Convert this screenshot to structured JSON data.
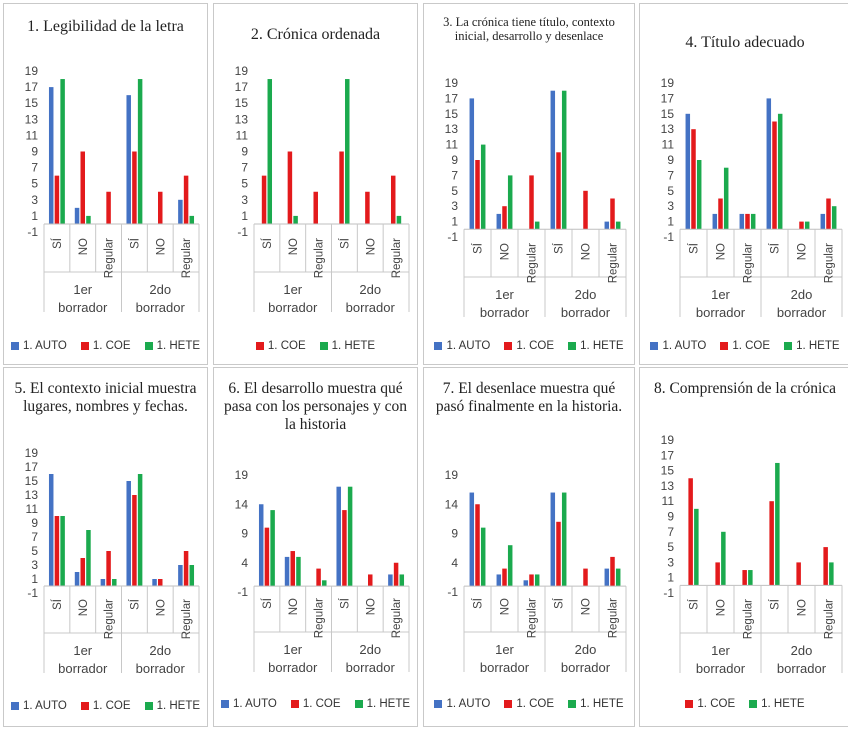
{
  "colors": {
    "1. AUTO": "#4472C4",
    "1. COE": "#E31A1C",
    "1. HETE": "#1BAA4E"
  },
  "groups": [
    "1er borrador",
    "2do borrador"
  ],
  "chart_data": [
    {
      "type": "bar",
      "title": "1. Legibilidad de la letra",
      "categories": [
        "SÍ",
        "NO",
        "Regular",
        "SÍ",
        "NO",
        "Regular"
      ],
      "groups": [
        "1er borrador",
        "2do borrador"
      ],
      "yticks": [
        -1,
        1,
        3,
        5,
        7,
        9,
        11,
        13,
        15,
        17,
        19
      ],
      "ylim": [
        -1,
        19
      ],
      "series": [
        {
          "name": "1. AUTO",
          "values": [
            17,
            2,
            0,
            16,
            0,
            3
          ]
        },
        {
          "name": "1. COE",
          "values": [
            6,
            9,
            4,
            9,
            4,
            6
          ]
        },
        {
          "name": "1. HETE",
          "values": [
            18,
            1,
            0,
            18,
            0,
            1
          ]
        }
      ]
    },
    {
      "type": "bar",
      "title": "2. Crónica ordenada",
      "categories": [
        "SÍ",
        "NO",
        "Regular",
        "SÍ",
        "NO",
        "Regular"
      ],
      "groups": [
        "1er borrador",
        "2do borrador"
      ],
      "yticks": [
        -1,
        1,
        3,
        5,
        7,
        9,
        11,
        13,
        15,
        17,
        19
      ],
      "ylim": [
        -1,
        19
      ],
      "series": [
        {
          "name": "1. COE",
          "values": [
            6,
            9,
            4,
            9,
            4,
            6
          ]
        },
        {
          "name": "1. HETE",
          "values": [
            18,
            1,
            0,
            18,
            0,
            1
          ]
        }
      ]
    },
    {
      "type": "bar",
      "title": "3. La crónica tiene título, contexto inicial, desarrollo y desenlace",
      "categories": [
        "SÍ",
        "NO",
        "Regular",
        "SÍ",
        "NO",
        "Regular"
      ],
      "groups": [
        "1er borrador",
        "2do borrador"
      ],
      "yticks": [
        -1,
        1,
        3,
        5,
        7,
        9,
        11,
        13,
        15,
        17,
        19
      ],
      "ylim": [
        -1,
        19
      ],
      "series": [
        {
          "name": "1. AUTO",
          "values": [
            17,
            2,
            0,
            18,
            0,
            1
          ]
        },
        {
          "name": "1. COE",
          "values": [
            9,
            3,
            7,
            10,
            5,
            4
          ]
        },
        {
          "name": "1. HETE",
          "values": [
            11,
            7,
            1,
            18,
            0,
            1
          ]
        }
      ]
    },
    {
      "type": "bar",
      "title": "4. Título adecuado",
      "categories": [
        "SÍ",
        "NO",
        "Regular",
        "SÍ",
        "NO",
        "Regular"
      ],
      "groups": [
        "1er borrador",
        "2do borrador"
      ],
      "yticks": [
        -1,
        1,
        3,
        5,
        7,
        9,
        11,
        13,
        15,
        17,
        19
      ],
      "ylim": [
        -1,
        19
      ],
      "series": [
        {
          "name": "1. AUTO",
          "values": [
            15,
            2,
            2,
            17,
            0,
            2
          ]
        },
        {
          "name": "1. COE",
          "values": [
            13,
            4,
            2,
            14,
            1,
            4
          ]
        },
        {
          "name": "1. HETE",
          "values": [
            9,
            8,
            2,
            15,
            1,
            3
          ]
        }
      ]
    },
    {
      "type": "bar",
      "title": "5. El contexto inicial muestra lugares, nombres y fechas.",
      "categories": [
        "SÍ",
        "NO",
        "Regular",
        "SÍ",
        "NO",
        "Regular"
      ],
      "groups": [
        "1er borrador",
        "2do borrador"
      ],
      "yticks": [
        -1,
        1,
        3,
        5,
        7,
        9,
        11,
        13,
        15,
        17,
        19
      ],
      "ylim": [
        -1,
        19
      ],
      "series": [
        {
          "name": "1. AUTO",
          "values": [
            16,
            2,
            1,
            15,
            1,
            3
          ]
        },
        {
          "name": "1. COE",
          "values": [
            10,
            4,
            5,
            13,
            1,
            5
          ]
        },
        {
          "name": "1. HETE",
          "values": [
            10,
            8,
            1,
            16,
            0,
            3
          ]
        }
      ]
    },
    {
      "type": "bar",
      "title": "6. El desarrollo muestra qué pasa con los personajes y con la historia",
      "categories": [
        "SÍ",
        "NO",
        "Regular",
        "SÍ",
        "NO",
        "Regular"
      ],
      "groups": [
        "1er borrador",
        "2do borrador"
      ],
      "yticks": [
        -1,
        4,
        9,
        14,
        19
      ],
      "ylim": [
        -1,
        19
      ],
      "series": [
        {
          "name": "1. AUTO",
          "values": [
            14,
            5,
            0,
            17,
            0,
            2
          ]
        },
        {
          "name": "1. COE",
          "values": [
            10,
            6,
            3,
            13,
            2,
            4
          ]
        },
        {
          "name": "1. HETE",
          "values": [
            13,
            5,
            1,
            17,
            0,
            2
          ]
        }
      ]
    },
    {
      "type": "bar",
      "title": "7. El desenlace muestra qué pasó finalmente en la historia.",
      "categories": [
        "SÍ",
        "NO",
        "Regular",
        "SÍ",
        "NO",
        "Regular"
      ],
      "groups": [
        "1er borrador",
        "2do borrador"
      ],
      "yticks": [
        -1,
        4,
        9,
        14,
        19
      ],
      "ylim": [
        -1,
        19
      ],
      "series": [
        {
          "name": "1. AUTO",
          "values": [
            16,
            2,
            1,
            16,
            0,
            3
          ]
        },
        {
          "name": "1. COE",
          "values": [
            14,
            3,
            2,
            11,
            3,
            5
          ]
        },
        {
          "name": "1. HETE",
          "values": [
            10,
            7,
            2,
            16,
            0,
            3
          ]
        }
      ]
    },
    {
      "type": "bar",
      "title": "8. Comprensión de la crónica",
      "categories": [
        "SÍ",
        "NO",
        "Regular",
        "SÍ",
        "NO",
        "Regular"
      ],
      "groups": [
        "1er borrador",
        "2do borrador"
      ],
      "yticks": [
        -1,
        1,
        3,
        5,
        7,
        9,
        11,
        13,
        15,
        17,
        19
      ],
      "ylim": [
        -1,
        19
      ],
      "series": [
        {
          "name": "1. COE",
          "values": [
            14,
            3,
            2,
            11,
            3,
            5
          ]
        },
        {
          "name": "1. HETE",
          "values": [
            10,
            7,
            2,
            16,
            0,
            3
          ]
        }
      ]
    }
  ]
}
